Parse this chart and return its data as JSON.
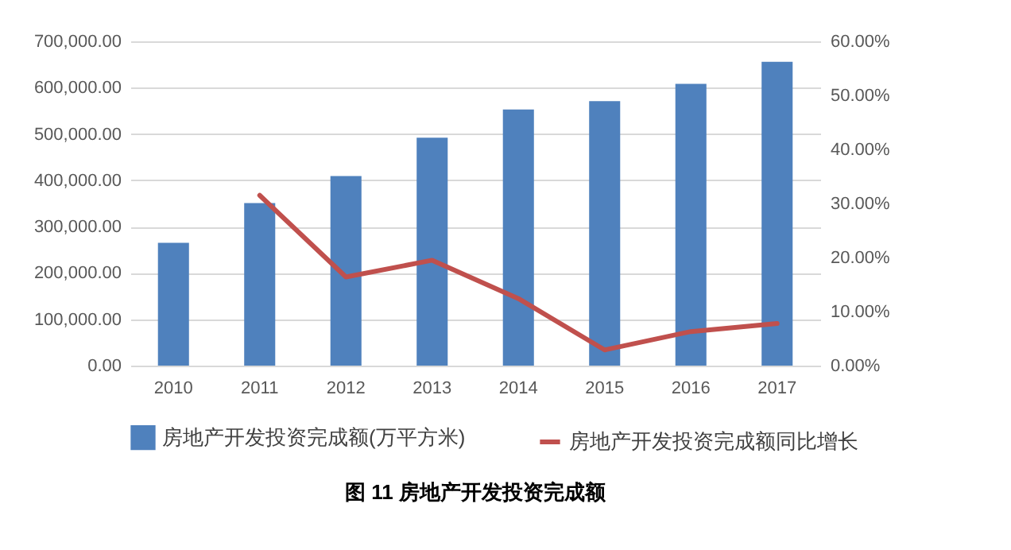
{
  "chart_data": {
    "type": "bar",
    "title": "图 11  房地产开发投资完成额",
    "categories": [
      "2010",
      "2011",
      "2012",
      "2013",
      "2014",
      "2015",
      "2016",
      "2017"
    ],
    "series": [
      {
        "name": "房地产开发投资完成额(万平方米)",
        "color": "#4f81bd",
        "values": [
          265000,
          351000,
          409000,
          492000,
          553000,
          571000,
          608000,
          656000
        ]
      },
      {
        "name": "房地产开发投资完成额同比增长",
        "type": "line",
        "axis": "y2",
        "color": "#c0504d",
        "values": [
          null,
          31.5,
          16.4,
          19.5,
          12.4,
          2.9,
          6.3,
          7.8
        ]
      }
    ],
    "ylim": [
      0,
      700000
    ],
    "yticks": [
      {
        "value": 0,
        "label": "0.00"
      },
      {
        "value": 100000,
        "label": "100,000.00"
      },
      {
        "value": 200000,
        "label": "200,000.00"
      },
      {
        "value": 300000,
        "label": "300,000.00"
      },
      {
        "value": 400000,
        "label": "400,000.00"
      },
      {
        "value": 500000,
        "label": "500,000.00"
      },
      {
        "value": 600000,
        "label": "600,000.00"
      },
      {
        "value": 700000,
        "label": "700,000.00"
      }
    ],
    "y2lim": [
      0,
      60
    ],
    "y2ticks": [
      {
        "value": 0,
        "label": "0.00%"
      },
      {
        "value": 10,
        "label": "10.00%"
      },
      {
        "value": 20,
        "label": "20.00%"
      },
      {
        "value": 30,
        "label": "30.00%"
      },
      {
        "value": 40,
        "label": "40.00%"
      },
      {
        "value": 50,
        "label": "50.00%"
      },
      {
        "value": 60,
        "label": "60.00%"
      }
    ],
    "grid": "y",
    "legend": "bottom",
    "marker": "none",
    "line_style": "solid"
  }
}
